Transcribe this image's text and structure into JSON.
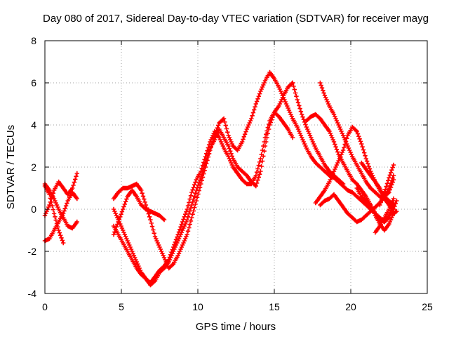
{
  "chart_data": {
    "type": "scatter",
    "title": "Day 080 of 2017, Sidereal Day-to-day VTEC variation (SDTVAR) for receiver mayg",
    "xlabel": "GPS time / hours",
    "ylabel": "SDTVAR / TECUs",
    "xlim": [
      0,
      25
    ],
    "ylim": [
      -4,
      8
    ],
    "xticks": [
      0,
      5,
      10,
      15,
      20,
      25
    ],
    "yticks": [
      -4,
      -2,
      0,
      2,
      4,
      6,
      8
    ],
    "grid": true,
    "marker": "plus",
    "color": "#ff0000",
    "series": [
      {
        "x": [
          0.0,
          0.3,
          0.6,
          0.9,
          1.2,
          1.5,
          1.8,
          2.1
        ],
        "y": [
          1.2,
          0.9,
          0.5,
          0.0,
          -0.4,
          -0.8,
          -0.9,
          -0.6
        ]
      },
      {
        "x": [
          0.0,
          0.3,
          0.6,
          0.9,
          1.2,
          1.5,
          1.8,
          2.1
        ],
        "y": [
          -0.3,
          0.2,
          0.9,
          1.3,
          1.0,
          0.7,
          1.0,
          1.7
        ]
      },
      {
        "x": [
          0.0,
          0.3,
          0.6,
          0.9,
          1.2,
          1.5,
          1.8,
          2.1
        ],
        "y": [
          -1.5,
          -1.4,
          -1.0,
          -0.6,
          -0.2,
          0.4,
          0.8,
          0.5
        ]
      },
      {
        "x": [
          0.0,
          0.3,
          0.6,
          0.9,
          1.2
        ],
        "y": [
          1.1,
          0.7,
          -0.2,
          -1.0,
          -1.6
        ]
      },
      {
        "x": [
          4.5,
          4.8,
          5.1,
          5.4,
          5.7,
          6.0,
          6.3,
          6.6,
          6.9,
          7.2,
          7.5,
          7.8,
          8.1,
          8.4,
          8.7,
          9.0,
          9.3,
          9.6,
          9.9,
          10.2,
          10.5,
          10.8,
          11.1,
          11.4,
          11.7,
          12.0,
          12.3,
          12.6,
          12.9,
          13.2,
          13.5,
          13.8,
          14.1,
          14.4,
          14.7,
          15.0,
          15.3,
          15.6,
          15.9,
          16.2
        ],
        "y": [
          0.5,
          0.8,
          1.0,
          1.0,
          1.1,
          1.2,
          0.9,
          0.2,
          -0.5,
          -1.3,
          -1.8,
          -2.3,
          -2.8,
          -2.6,
          -2.2,
          -1.7,
          -1.2,
          -0.4,
          0.4,
          1.2,
          2.0,
          2.8,
          3.5,
          4.1,
          4.3,
          3.5,
          3.0,
          2.8,
          3.2,
          3.8,
          4.3,
          5.0,
          5.6,
          6.1,
          6.5,
          6.2,
          5.8,
          5.3,
          4.8,
          4.3
        ]
      },
      {
        "x": [
          4.5,
          4.8,
          5.1,
          5.4,
          5.7,
          6.0,
          6.3,
          6.6,
          6.9,
          7.2,
          7.5,
          7.8
        ],
        "y": [
          -1.2,
          -0.6,
          0.0,
          0.6,
          0.9,
          0.6,
          0.2,
          0.0,
          -0.1,
          -0.2,
          -0.3,
          -0.5
        ]
      },
      {
        "x": [
          4.5,
          4.8,
          5.1,
          5.4,
          5.7,
          6.0,
          6.3,
          6.6,
          6.9,
          7.2,
          7.5,
          7.8,
          8.1,
          8.4,
          8.7,
          9.0,
          9.3,
          9.6,
          9.9,
          10.2,
          10.5,
          10.8,
          11.1,
          11.4,
          11.7,
          12.0,
          12.3,
          12.6,
          12.9,
          13.2,
          13.5,
          13.8,
          14.1,
          14.4,
          14.7,
          15.0,
          15.3,
          15.6,
          15.9,
          16.2
        ],
        "y": [
          0.0,
          -0.5,
          -1.0,
          -1.5,
          -2.0,
          -2.5,
          -3.0,
          -3.3,
          -3.6,
          -3.4,
          -3.0,
          -2.8,
          -2.5,
          -2.0,
          -1.5,
          -1.0,
          -0.5,
          0.2,
          0.9,
          1.5,
          2.2,
          2.9,
          3.3,
          3.8,
          3.4,
          3.0,
          2.4,
          2.0,
          1.8,
          1.6,
          1.3,
          1.1,
          1.8,
          3.0,
          4.0,
          4.6,
          4.9,
          5.4,
          5.8,
          6.0
        ]
      },
      {
        "x": [
          4.5,
          4.8,
          5.1,
          5.4,
          5.7,
          6.0,
          6.3,
          6.6,
          6.9,
          7.2,
          7.5,
          7.8,
          8.1,
          8.4,
          8.7,
          9.0,
          9.3,
          9.6,
          9.9,
          10.2,
          10.5,
          10.8,
          11.1,
          11.4,
          11.7,
          12.0,
          12.3,
          12.6,
          12.9,
          13.2,
          13.5,
          13.8,
          14.1,
          14.4,
          14.7,
          15.0,
          15.3,
          15.6,
          15.9,
          16.2
        ],
        "y": [
          -0.8,
          -1.2,
          -1.6,
          -2.0,
          -2.4,
          -2.8,
          -3.1,
          -3.3,
          -3.5,
          -3.2,
          -2.9,
          -2.7,
          -2.4,
          -1.8,
          -1.2,
          -0.6,
          0.0,
          0.8,
          1.4,
          1.8,
          2.5,
          3.2,
          3.7,
          3.4,
          2.9,
          2.5,
          2.0,
          1.7,
          1.4,
          1.2,
          1.2,
          1.6,
          2.4,
          3.4,
          4.2,
          4.6,
          4.4,
          4.1,
          3.8,
          3.4
        ]
      },
      {
        "x": [
          16.2,
          16.5,
          16.8,
          17.1,
          17.4,
          17.7,
          18.0,
          18.3,
          18.6,
          18.9,
          19.2,
          19.5,
          19.8,
          20.1,
          20.4,
          20.7,
          21.0,
          21.3,
          21.6,
          21.9,
          22.2,
          22.5,
          22.8,
          23.0
        ],
        "y": [
          4.3,
          3.9,
          3.4,
          2.9,
          2.5,
          2.2,
          2.0,
          1.8,
          1.6,
          1.5,
          1.3,
          1.1,
          0.9,
          0.8,
          0.6,
          0.4,
          0.2,
          0.0,
          -0.2,
          -0.4,
          -0.6,
          -0.4,
          0.0,
          0.4
        ]
      },
      {
        "x": [
          16.2,
          16.5,
          16.8,
          17.1,
          17.4,
          17.7,
          18.0,
          18.3,
          18.6,
          18.9,
          19.2,
          19.5
        ],
        "y": [
          6.0,
          5.2,
          4.5,
          3.9,
          3.4,
          2.9,
          2.5,
          2.1,
          1.8,
          1.6,
          1.4,
          1.2
        ]
      },
      {
        "x": [
          17.1,
          17.4,
          17.7,
          18.0,
          18.3,
          18.6,
          18.9,
          19.2,
          19.5,
          19.8,
          20.1,
          20.4,
          20.7,
          21.0,
          21.3,
          21.6,
          21.9,
          22.2,
          22.5,
          22.8,
          23.0
        ],
        "y": [
          4.2,
          4.4,
          4.5,
          4.3,
          4.0,
          3.7,
          3.2,
          2.6,
          2.2,
          1.8,
          1.4,
          1.2,
          0.9,
          0.6,
          0.2,
          -0.3,
          -0.7,
          -1.0,
          -0.7,
          -0.2,
          -0.1
        ]
      },
      {
        "x": [
          17.7,
          18.0,
          18.3,
          18.6,
          18.9,
          19.2,
          19.5,
          19.8,
          20.1,
          20.4,
          20.7,
          21.0,
          21.3,
          21.6,
          21.9,
          22.2,
          22.5,
          22.8
        ],
        "y": [
          0.3,
          0.6,
          0.9,
          1.3,
          1.8,
          2.3,
          2.8,
          3.5,
          3.9,
          3.7,
          3.1,
          2.4,
          1.8,
          1.3,
          0.9,
          0.6,
          0.4,
          0.2
        ]
      },
      {
        "x": [
          18.0,
          18.3,
          18.6,
          18.9,
          19.2,
          19.5,
          19.8,
          20.1,
          20.4,
          20.7,
          21.0,
          21.3,
          21.6,
          21.9,
          22.2,
          22.5,
          22.8
        ],
        "y": [
          6.0,
          5.4,
          4.9,
          4.5,
          4.0,
          3.5,
          3.0,
          2.5,
          2.1,
          1.7,
          1.3,
          1.0,
          0.8,
          0.6,
          0.5,
          0.2,
          0.0
        ]
      },
      {
        "x": [
          18.0,
          18.3,
          18.6,
          18.9,
          19.2,
          19.5,
          19.8,
          20.1,
          20.4,
          20.7,
          21.0,
          21.3,
          21.6,
          21.9,
          22.2,
          22.5,
          22.8
        ],
        "y": [
          0.2,
          0.4,
          0.5,
          0.7,
          0.4,
          0.1,
          -0.2,
          -0.4,
          -0.6,
          -0.5,
          -0.3,
          -0.1,
          0.1,
          0.3,
          0.6,
          1.0,
          1.6
        ]
      },
      {
        "x": [
          20.4,
          20.7,
          21.0,
          21.3,
          21.6,
          21.9,
          22.2,
          22.5,
          22.8
        ],
        "y": [
          1.0,
          0.6,
          0.4,
          0.2,
          -0.2,
          -0.5,
          -0.6,
          -0.3,
          0.3
        ]
      },
      {
        "x": [
          20.7,
          21.0,
          21.3,
          21.6,
          21.9,
          22.2,
          22.5,
          22.8
        ],
        "y": [
          2.2,
          1.9,
          1.6,
          1.3,
          1.0,
          0.6,
          0.8,
          1.4
        ]
      },
      {
        "x": [
          21.6,
          21.9,
          22.2,
          22.5,
          22.8
        ],
        "y": [
          -1.1,
          -0.8,
          -0.4,
          0.0,
          0.5
        ]
      },
      {
        "x": [
          21.9,
          22.2,
          22.5,
          22.8
        ],
        "y": [
          0.2,
          0.8,
          1.5,
          2.1
        ]
      }
    ]
  }
}
